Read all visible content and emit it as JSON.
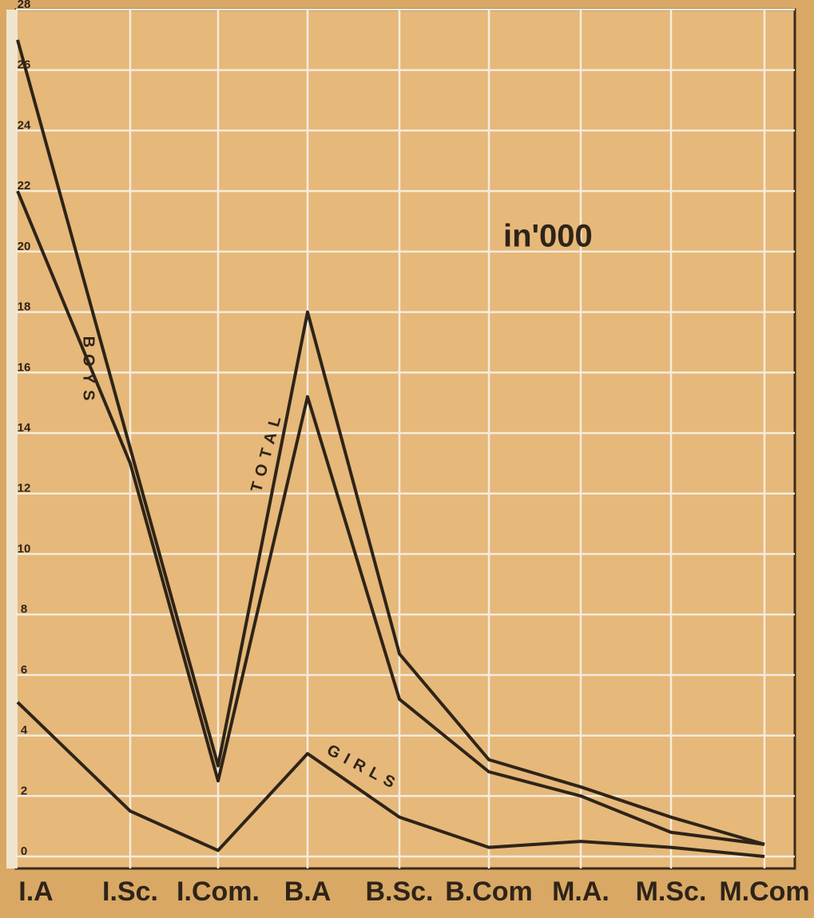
{
  "chart_data": {
    "type": "line",
    "annotation": "in'000",
    "categories": [
      "I.A",
      "I.Sc.",
      "I.Com.",
      "B.A",
      "B.Sc.",
      "B.Com",
      "M.A.",
      "M.Sc.",
      "M.Com"
    ],
    "series": [
      {
        "name": "TOTAL",
        "color": "#2e2418",
        "values": [
          27,
          13.5,
          3,
          18,
          6.7,
          3.2,
          2.3,
          1.3,
          0.4
        ]
      },
      {
        "name": "BOYS",
        "color": "#2e2418",
        "values": [
          22,
          13,
          2.5,
          15.2,
          5.2,
          2.8,
          2,
          0.8,
          0.4
        ]
      },
      {
        "name": "GIRLS",
        "color": "#2e2418",
        "values": [
          5.1,
          1.5,
          0.2,
          3.4,
          1.3,
          0.3,
          0.5,
          0.3,
          0
        ]
      }
    ],
    "ylim": [
      0,
      28
    ],
    "yticks": [
      0,
      2,
      4,
      6,
      8,
      10,
      12,
      14,
      16,
      18,
      20,
      22,
      24,
      26,
      28
    ],
    "grid": true
  }
}
